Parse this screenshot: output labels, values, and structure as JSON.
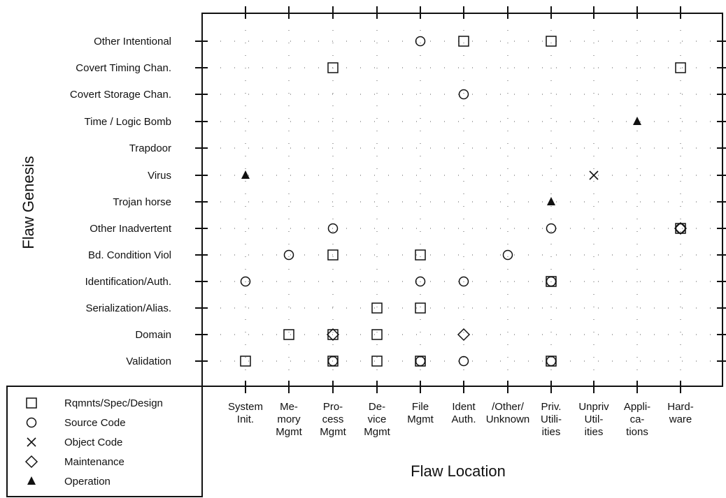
{
  "chart_data": {
    "type": "scatter",
    "xlabel": "Flaw Location",
    "ylabel": "Flaw Genesis",
    "x_categories": [
      [
        "System",
        "Init."
      ],
      [
        "Me-",
        "mory",
        "Mgmt"
      ],
      [
        "Pro-",
        "cess",
        "Mgmt"
      ],
      [
        "De-",
        "vice",
        "Mgmt"
      ],
      [
        "File",
        "Mgmt"
      ],
      [
        "Ident",
        "Auth."
      ],
      [
        "/Other/",
        "Unknown"
      ],
      [
        "Priv.",
        "Utili-",
        "ities"
      ],
      [
        "Unpriv",
        "Util-",
        "ities"
      ],
      [
        "Appli-",
        "ca-",
        "tions"
      ],
      [
        "Hard-",
        "ware"
      ]
    ],
    "y_categories": [
      "Other Intentional",
      "Covert Timing Chan.",
      "Covert Storage Chan.",
      "Time / Logic Bomb",
      "Trapdoor",
      "Virus",
      "Trojan horse",
      "Other Inadvertent",
      "Bd. Condition Viol",
      "Identification/Auth.",
      "Serialization/Alias.",
      "Domain",
      "Validation"
    ],
    "legend": [
      {
        "symbol": "square",
        "label": "Rqmnts/Spec/Design"
      },
      {
        "symbol": "circle",
        "label": "Source Code"
      },
      {
        "symbol": "cross",
        "label": "Object Code"
      },
      {
        "symbol": "diamond",
        "label": "Maintenance"
      },
      {
        "symbol": "triangle",
        "label": "Operation"
      }
    ],
    "legend_position": "bottom-left",
    "points": [
      {
        "x": "File Mgmt",
        "y": "Other Intentional",
        "symbols": [
          "circle"
        ]
      },
      {
        "x": "Ident Auth.",
        "y": "Other Intentional",
        "symbols": [
          "square"
        ]
      },
      {
        "x": "Priv. Utilities",
        "y": "Other Intentional",
        "symbols": [
          "square"
        ]
      },
      {
        "x": "Process Mgmt",
        "y": "Covert Timing Chan.",
        "symbols": [
          "square"
        ]
      },
      {
        "x": "Hardware",
        "y": "Covert Timing Chan.",
        "symbols": [
          "square"
        ]
      },
      {
        "x": "Ident Auth.",
        "y": "Covert Storage Chan.",
        "symbols": [
          "circle"
        ]
      },
      {
        "x": "Applications",
        "y": "Time / Logic Bomb",
        "symbols": [
          "triangle"
        ]
      },
      {
        "x": "System Init.",
        "y": "Virus",
        "symbols": [
          "triangle"
        ]
      },
      {
        "x": "Unpriv Utilities",
        "y": "Virus",
        "symbols": [
          "cross"
        ]
      },
      {
        "x": "Priv. Utilities",
        "y": "Trojan horse",
        "symbols": [
          "triangle"
        ]
      },
      {
        "x": "Process Mgmt",
        "y": "Other Inadvertent",
        "symbols": [
          "circle"
        ]
      },
      {
        "x": "Priv. Utilities",
        "y": "Other Inadvertent",
        "symbols": [
          "circle"
        ]
      },
      {
        "x": "Hardware",
        "y": "Other Inadvertent",
        "symbols": [
          "square",
          "circle",
          "diamond"
        ]
      },
      {
        "x": "Memory Mgmt",
        "y": "Bd. Condition Viol",
        "symbols": [
          "circle"
        ]
      },
      {
        "x": "Process Mgmt",
        "y": "Bd. Condition Viol",
        "symbols": [
          "square"
        ]
      },
      {
        "x": "File Mgmt",
        "y": "Bd. Condition Viol",
        "symbols": [
          "square"
        ]
      },
      {
        "x": "/Other/ Unknown",
        "y": "Bd. Condition Viol",
        "symbols": [
          "circle"
        ]
      },
      {
        "x": "System Init.",
        "y": "Identification/Auth.",
        "symbols": [
          "circle"
        ]
      },
      {
        "x": "File Mgmt",
        "y": "Identification/Auth.",
        "symbols": [
          "circle"
        ]
      },
      {
        "x": "Ident Auth.",
        "y": "Identification/Auth.",
        "symbols": [
          "circle"
        ]
      },
      {
        "x": "Priv. Utilities",
        "y": "Identification/Auth.",
        "symbols": [
          "square",
          "circle"
        ]
      },
      {
        "x": "Device Mgmt",
        "y": "Serialization/Alias.",
        "symbols": [
          "square"
        ]
      },
      {
        "x": "File Mgmt",
        "y": "Serialization/Alias.",
        "symbols": [
          "square"
        ]
      },
      {
        "x": "Memory Mgmt",
        "y": "Domain",
        "symbols": [
          "square"
        ]
      },
      {
        "x": "Process Mgmt",
        "y": "Domain",
        "symbols": [
          "square",
          "diamond"
        ]
      },
      {
        "x": "Device Mgmt",
        "y": "Domain",
        "symbols": [
          "square"
        ]
      },
      {
        "x": "Ident Auth.",
        "y": "Domain",
        "symbols": [
          "diamond"
        ]
      },
      {
        "x": "System Init.",
        "y": "Validation",
        "symbols": [
          "square"
        ]
      },
      {
        "x": "Process Mgmt",
        "y": "Validation",
        "symbols": [
          "square",
          "circle"
        ]
      },
      {
        "x": "Device Mgmt",
        "y": "Validation",
        "symbols": [
          "square"
        ]
      },
      {
        "x": "File Mgmt",
        "y": "Validation",
        "symbols": [
          "square",
          "circle"
        ]
      },
      {
        "x": "Ident Auth.",
        "y": "Validation",
        "symbols": [
          "circle"
        ]
      },
      {
        "x": "Priv. Utilities",
        "y": "Validation",
        "symbols": [
          "square",
          "circle"
        ]
      }
    ]
  }
}
